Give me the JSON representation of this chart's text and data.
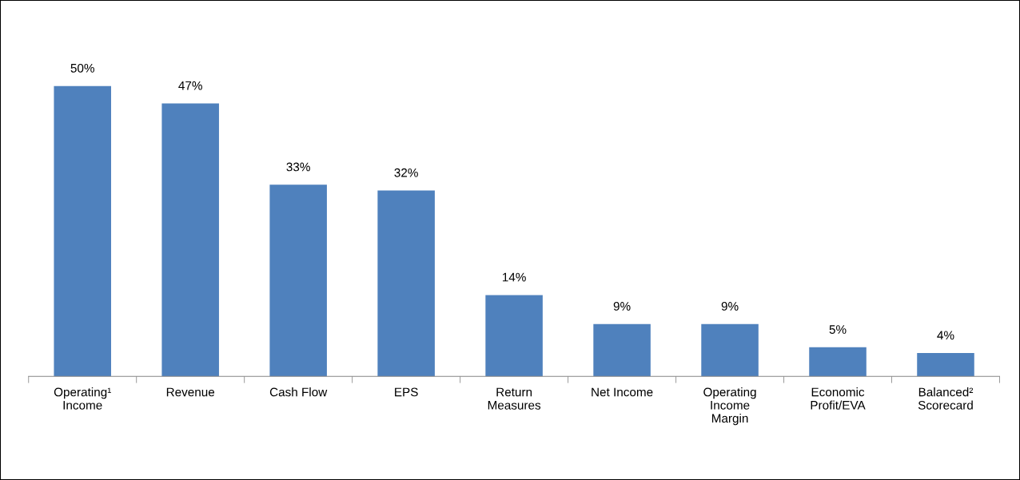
{
  "chart_data": {
    "type": "bar",
    "categories": [
      "Operating¹\nIncome",
      "Revenue",
      "Cash Flow",
      "EPS",
      "Return\nMeasures",
      "Net Income",
      "Operating\nIncome\nMargin",
      "Economic\nProfit/EVA",
      "Balanced²\nScorecard"
    ],
    "values": [
      50,
      47,
      33,
      32,
      14,
      9,
      9,
      5,
      4
    ],
    "value_labels": [
      "50%",
      "47%",
      "33%",
      "32%",
      "14%",
      "9%",
      "9%",
      "5%",
      "4%"
    ],
    "color": "#4f81bd",
    "grid": false,
    "legend": false
  }
}
